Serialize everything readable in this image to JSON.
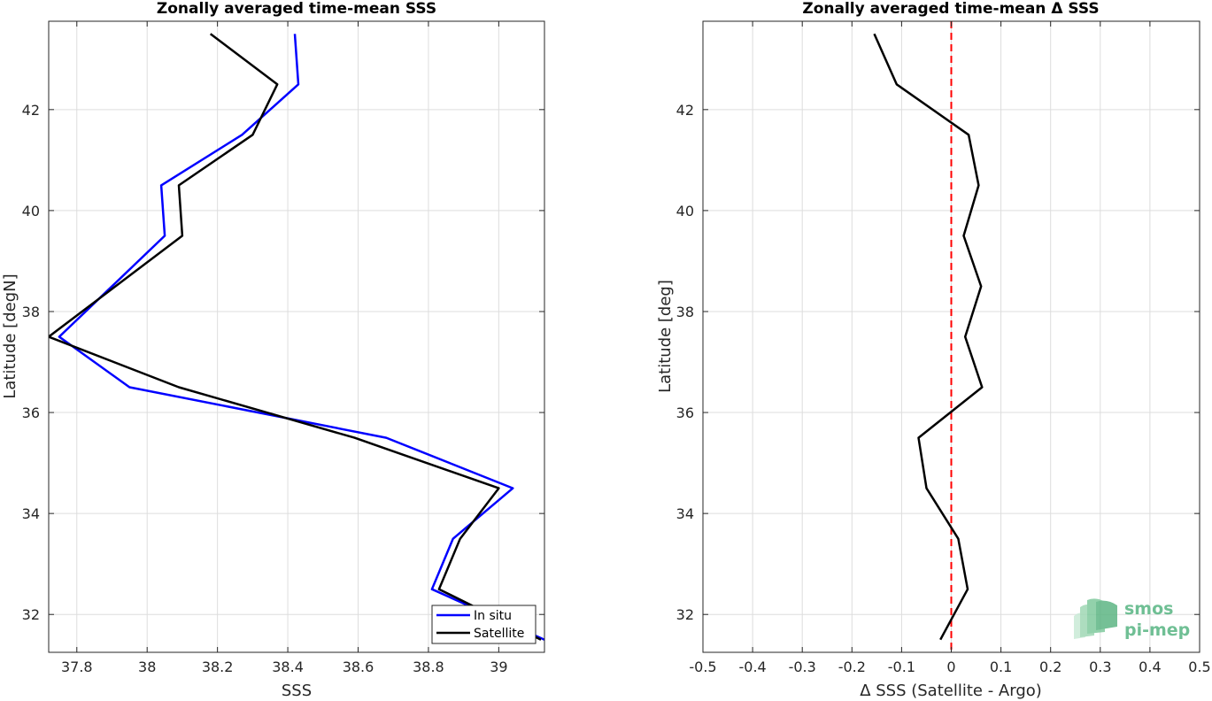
{
  "chart_data": [
    {
      "type": "line",
      "title": "Zonally averaged time-mean SSS",
      "xlabel": "SSS",
      "ylabel": "Latitude [degN]",
      "xlim": [
        37.72,
        39.13
      ],
      "ylim": [
        31.25,
        43.75
      ],
      "xticks": [
        37.8,
        38,
        38.2,
        38.4,
        38.6,
        38.8,
        39
      ],
      "xtick_labels": [
        "37.8",
        "38",
        "38.2",
        "38.4",
        "38.6",
        "38.8",
        "39"
      ],
      "yticks": [
        32,
        34,
        36,
        38,
        40,
        42
      ],
      "ytick_labels": [
        "32",
        "34",
        "36",
        "38",
        "40",
        "42"
      ],
      "grid": true,
      "legend_position": "bottom-right",
      "series": [
        {
          "name": "In situ",
          "color": "#0000ff",
          "x": [
            38.42,
            38.43,
            38.27,
            38.04,
            38.05,
            37.75,
            37.95,
            38.68,
            39.04,
            38.87,
            38.81,
            39.13
          ],
          "y": [
            43.5,
            42.5,
            41.5,
            40.5,
            39.5,
            37.5,
            36.5,
            35.5,
            34.5,
            33.5,
            32.5,
            31.5
          ]
        },
        {
          "name": "Satellite",
          "color": "#000000",
          "x": [
            38.18,
            38.37,
            38.3,
            38.09,
            38.1,
            37.72,
            38.09,
            38.59,
            39.0,
            38.89,
            38.83,
            39.12
          ],
          "y": [
            43.5,
            42.5,
            41.5,
            40.5,
            39.5,
            37.5,
            36.5,
            35.5,
            34.5,
            33.5,
            32.5,
            31.5
          ]
        }
      ]
    },
    {
      "type": "line",
      "title": "Zonally averaged time-mean Δ SSS",
      "xlabel": "Δ SSS (Satellite - Argo)",
      "ylabel": "Latitude [deg]",
      "xlim": [
        -0.5,
        0.5
      ],
      "ylim": [
        31.25,
        43.75
      ],
      "xticks": [
        -0.5,
        -0.4,
        -0.3,
        -0.2,
        -0.1,
        0,
        0.1,
        0.2,
        0.3,
        0.4,
        0.5
      ],
      "xtick_labels": [
        "-0.5",
        "-0.4",
        "-0.3",
        "-0.2",
        "-0.1",
        "0",
        "0.1",
        "0.2",
        "0.3",
        "0.4",
        "0.5"
      ],
      "yticks": [
        32,
        34,
        36,
        38,
        40,
        42
      ],
      "ytick_labels": [
        "32",
        "34",
        "36",
        "38",
        "40",
        "42"
      ],
      "grid": true,
      "series": [
        {
          "color": "#000000",
          "x": [
            -0.155,
            -0.11,
            0.035,
            0.055,
            0.025,
            0.06,
            0.028,
            0.062,
            -0.066,
            -0.05,
            0.014,
            0.033,
            -0.022
          ],
          "y": [
            43.5,
            42.5,
            41.5,
            40.5,
            39.5,
            38.5,
            37.5,
            36.5,
            35.5,
            34.5,
            33.5,
            32.5,
            31.5
          ]
        }
      ],
      "reference_line": {
        "x": 0,
        "color": "#ff0000",
        "style": "dashed"
      }
    }
  ],
  "logo": {
    "line1": "smos",
    "line2": "pi-mep",
    "color": "#6fbf94"
  }
}
